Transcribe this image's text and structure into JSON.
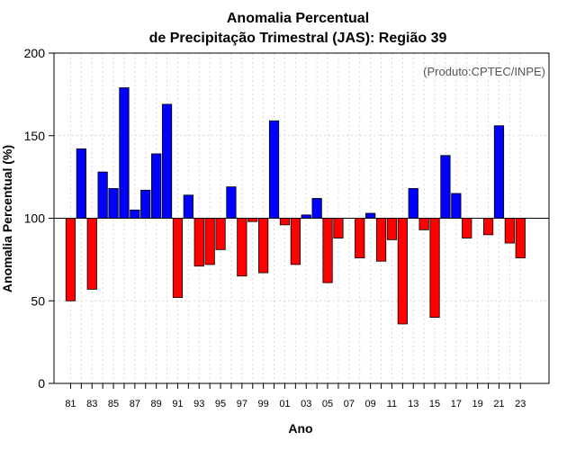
{
  "chart_data": {
    "type": "bar",
    "title": "Anomalia Percentual",
    "subtitle": "de Precipitação Trimestral (JAS): Região 39",
    "source_note": "(Produto:CPTEC/INPE)",
    "xlabel": "Ano",
    "ylabel": "Anomalia Percentual (%)",
    "ylim": [
      0,
      200
    ],
    "yticks": [
      0,
      50,
      100,
      150,
      200
    ],
    "baseline": 100,
    "grid": true,
    "colors": {
      "above": "#0000ff",
      "below": "#ff0000",
      "axis": "#000000",
      "grid": "#d9d9d9"
    },
    "categories": [
      "81",
      "82",
      "83",
      "84",
      "85",
      "86",
      "87",
      "88",
      "89",
      "90",
      "91",
      "92",
      "93",
      "94",
      "95",
      "96",
      "97",
      "98",
      "99",
      "00",
      "01",
      "02",
      "03",
      "04",
      "05",
      "06",
      "07",
      "08",
      "09",
      "10",
      "11",
      "12",
      "13",
      "14",
      "15",
      "16",
      "17",
      "18",
      "19",
      "20",
      "21",
      "22",
      "23"
    ],
    "xtick_labels": [
      "81",
      "83",
      "85",
      "87",
      "89",
      "91",
      "93",
      "95",
      "97",
      "99",
      "01",
      "03",
      "05",
      "07",
      "09",
      "11",
      "13",
      "15",
      "17",
      "19",
      "21",
      "23"
    ],
    "values": [
      50,
      142,
      57,
      128,
      118,
      179,
      105,
      117,
      139,
      169,
      52,
      114,
      71,
      72,
      81,
      119,
      65,
      98,
      67,
      159,
      96,
      72,
      102,
      112,
      61,
      88,
      100,
      76,
      103,
      74,
      87,
      36,
      118,
      93,
      40,
      138,
      115,
      88,
      100,
      90,
      156,
      85,
      76
    ]
  }
}
